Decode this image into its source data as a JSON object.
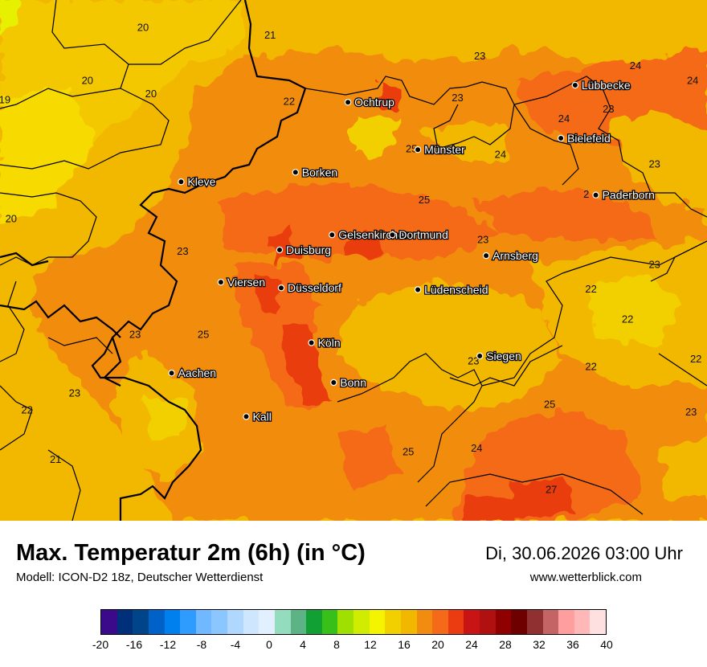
{
  "map": {
    "cities": [
      {
        "name": "Ochtrup",
        "lon": 7.19,
        "lat": 52.21
      },
      {
        "name": "Lübbecke",
        "lon": 8.62,
        "lat": 52.3
      },
      {
        "name": "Bielefeld",
        "lon": 8.53,
        "lat": 52.02
      },
      {
        "name": "Münster",
        "lon": 7.63,
        "lat": 51.96
      },
      {
        "name": "Borken",
        "lon": 6.86,
        "lat": 51.84
      },
      {
        "name": "Kleve",
        "lon": 6.14,
        "lat": 51.79
      },
      {
        "name": "Paderborn",
        "lon": 8.75,
        "lat": 51.72
      },
      {
        "name": "Gelsenkirchen",
        "lon": 7.09,
        "lat": 51.51
      },
      {
        "name": "Dortmund",
        "lon": 7.47,
        "lat": 51.51
      },
      {
        "name": "Duisburg",
        "lon": 6.76,
        "lat": 51.43
      },
      {
        "name": "Arnsberg",
        "lon": 8.06,
        "lat": 51.4
      },
      {
        "name": "Viersen",
        "lon": 6.39,
        "lat": 51.26
      },
      {
        "name": "Düsseldorf",
        "lon": 6.77,
        "lat": 51.23
      },
      {
        "name": "Lüdenscheid",
        "lon": 7.63,
        "lat": 51.22
      },
      {
        "name": "Köln",
        "lon": 6.96,
        "lat": 50.94
      },
      {
        "name": "Siegen",
        "lon": 8.02,
        "lat": 50.87
      },
      {
        "name": "Aachen",
        "lon": 6.08,
        "lat": 50.78
      },
      {
        "name": "Bonn",
        "lon": 7.1,
        "lat": 50.73
      },
      {
        "name": "Kall",
        "lon": 6.55,
        "lat": 50.55
      }
    ],
    "isolines": [
      {
        "value": "20",
        "lon": 5.9,
        "lat": 52.6
      },
      {
        "value": "21",
        "lon": 6.7,
        "lat": 52.56
      },
      {
        "value": "20",
        "lon": 5.55,
        "lat": 52.32
      },
      {
        "value": "20",
        "lon": 5.95,
        "lat": 52.25
      },
      {
        "value": "19",
        "lon": 5.03,
        "lat": 52.22
      },
      {
        "value": "22",
        "lon": 6.82,
        "lat": 52.21
      },
      {
        "value": "23",
        "lon": 8.02,
        "lat": 52.45
      },
      {
        "value": "24",
        "lon": 9.0,
        "lat": 52.4
      },
      {
        "value": "24",
        "lon": 9.36,
        "lat": 52.32
      },
      {
        "value": "23",
        "lon": 7.88,
        "lat": 52.23
      },
      {
        "value": "24",
        "lon": 8.55,
        "lat": 52.12
      },
      {
        "value": "23",
        "lon": 8.83,
        "lat": 52.17
      },
      {
        "value": "25",
        "lon": 7.59,
        "lat": 51.96
      },
      {
        "value": "24",
        "lon": 8.15,
        "lat": 51.93
      },
      {
        "value": "23",
        "lon": 9.12,
        "lat": 51.88
      },
      {
        "value": "2",
        "lon": 8.69,
        "lat": 51.72
      },
      {
        "value": "25",
        "lon": 7.67,
        "lat": 51.69
      },
      {
        "value": "20",
        "lon": 5.07,
        "lat": 51.59
      },
      {
        "value": "25",
        "lon": 7.39,
        "lat": 51.51
      },
      {
        "value": "23",
        "lon": 8.04,
        "lat": 51.48
      },
      {
        "value": "23",
        "lon": 6.15,
        "lat": 51.42
      },
      {
        "value": "23",
        "lon": 9.12,
        "lat": 51.35
      },
      {
        "value": "22",
        "lon": 8.72,
        "lat": 51.22
      },
      {
        "value": "22",
        "lon": 8.95,
        "lat": 51.06
      },
      {
        "value": "23",
        "lon": 5.85,
        "lat": 50.98
      },
      {
        "value": "25",
        "lon": 6.28,
        "lat": 50.98
      },
      {
        "value": "23",
        "lon": 7.98,
        "lat": 50.84
      },
      {
        "value": "22",
        "lon": 8.72,
        "lat": 50.81
      },
      {
        "value": "22",
        "lon": 9.38,
        "lat": 50.85
      },
      {
        "value": "23",
        "lon": 5.47,
        "lat": 50.67
      },
      {
        "value": "22",
        "lon": 5.17,
        "lat": 50.58
      },
      {
        "value": "25",
        "lon": 8.46,
        "lat": 50.61
      },
      {
        "value": "23",
        "lon": 9.35,
        "lat": 50.57
      },
      {
        "value": "24",
        "lon": 8.0,
        "lat": 50.38
      },
      {
        "value": "25",
        "lon": 7.57,
        "lat": 50.36
      },
      {
        "value": "21",
        "lon": 5.35,
        "lat": 50.32
      },
      {
        "value": "27",
        "lon": 8.47,
        "lat": 50.16
      }
    ]
  },
  "footer": {
    "title": "Max. Temperatur 2m (6h) (in °C)",
    "subtitle": "Modell: ICON-D2 18z, Deutscher Wetterdienst",
    "datetime": "Di, 30.06.2026 03:00 Uhr",
    "website": "www.wetterblick.com"
  },
  "legend": {
    "colors": [
      "#3a0a8a",
      "#00307a",
      "#00458a",
      "#0062c8",
      "#0080ee",
      "#2e9cff",
      "#70b8ff",
      "#8cc6ff",
      "#b0d8ff",
      "#cfe6ff",
      "#e1efff",
      "#94dcbe",
      "#5cb386",
      "#10a033",
      "#38c018",
      "#a0e000",
      "#d0ec00",
      "#f4f400",
      "#f2d000",
      "#f2b800",
      "#f28c10",
      "#f46a18",
      "#ea3c10",
      "#c81414",
      "#b01010",
      "#900000",
      "#6e0000",
      "#903030",
      "#c46464",
      "#ff9e9e",
      "#ffb8b8",
      "#ffe0e0"
    ],
    "ticks": [
      "-20",
      "-16",
      "-12",
      "-8",
      "-4",
      "0",
      "4",
      "8",
      "12",
      "16",
      "20",
      "24",
      "28",
      "32",
      "36",
      "40"
    ]
  }
}
